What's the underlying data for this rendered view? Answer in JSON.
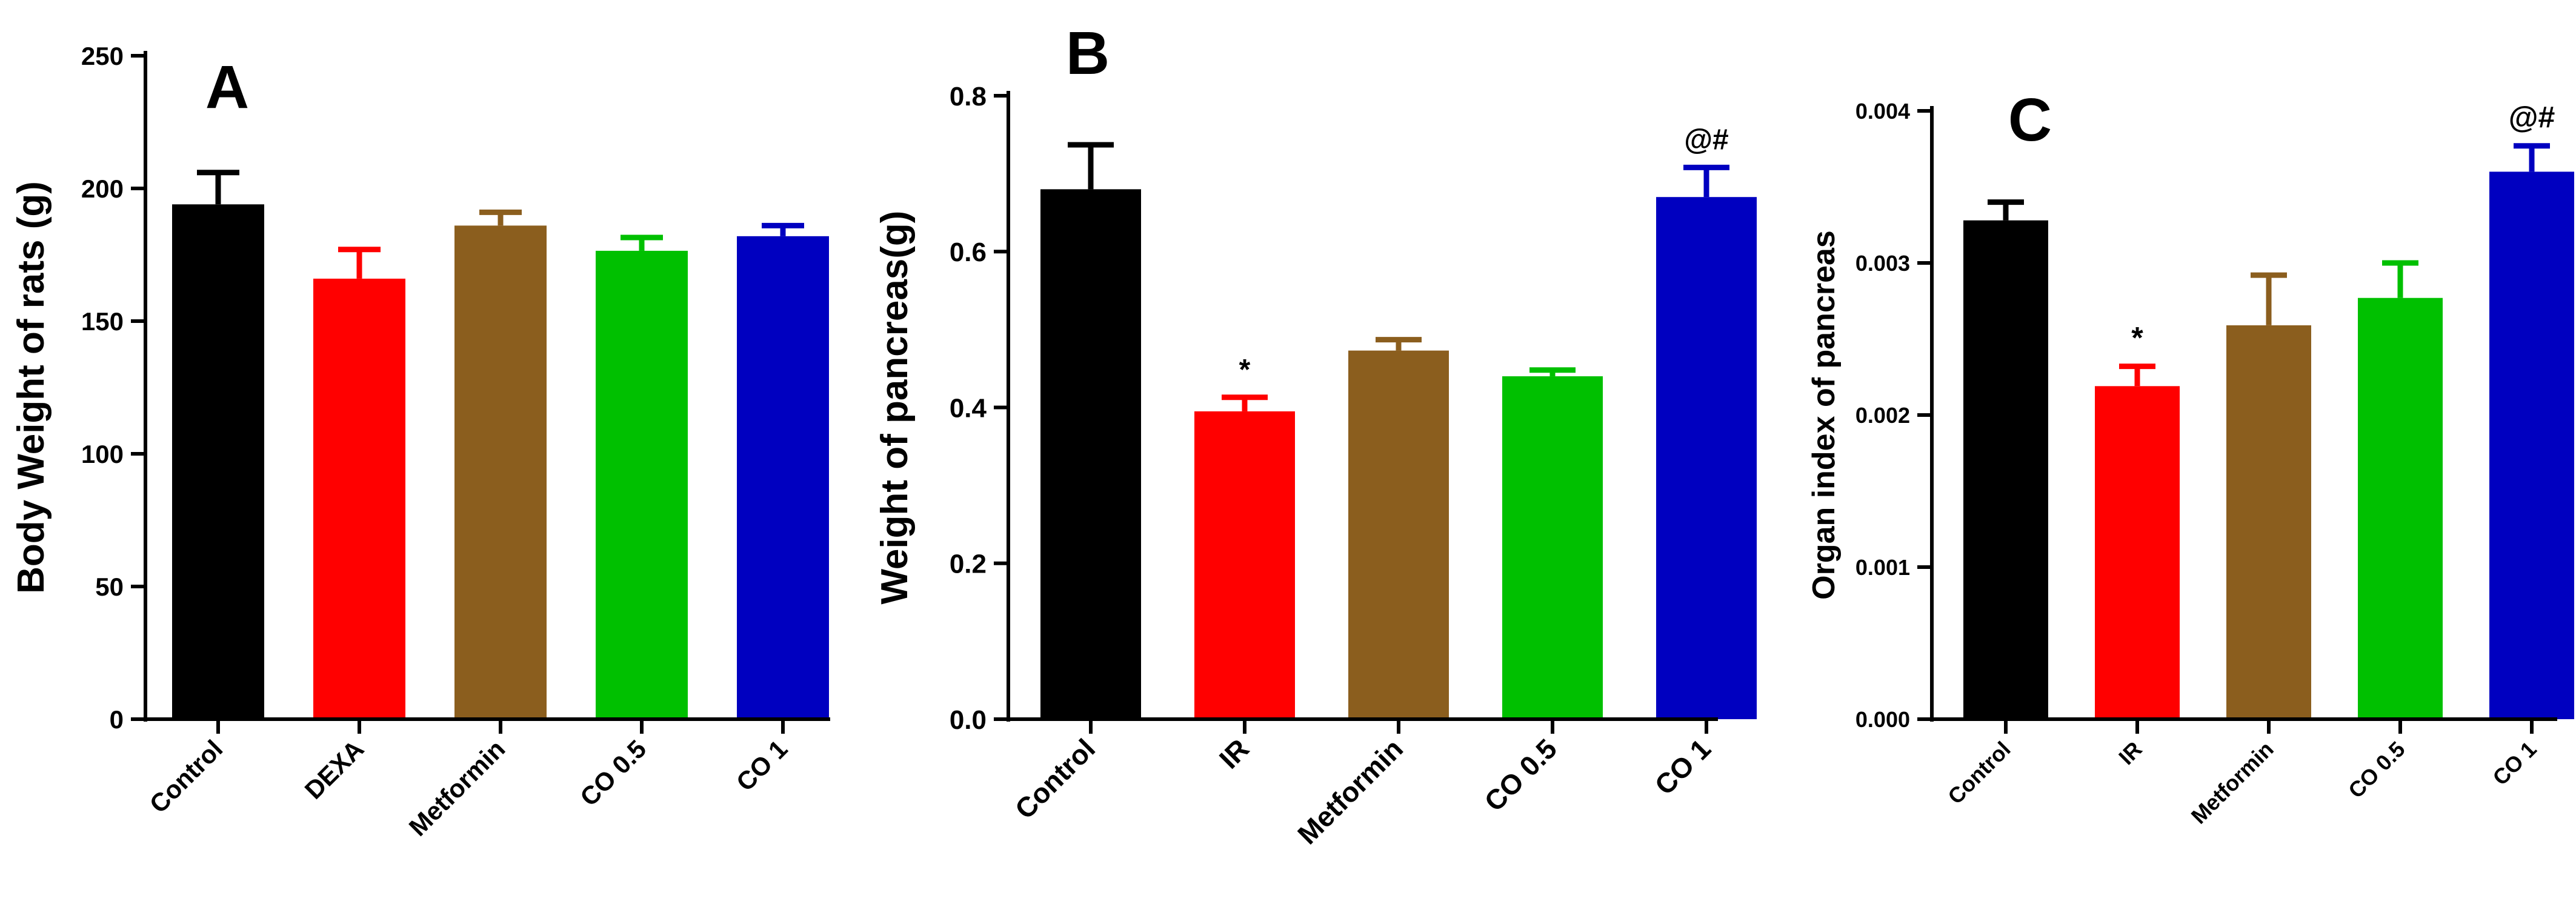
{
  "chart_data": [
    {
      "type": "bar",
      "panel_label": "A",
      "title": "",
      "xlabel": "",
      "ylabel": "Body Weight of rats (g)",
      "ylim": [
        0,
        250
      ],
      "yticks": [
        0,
        50,
        100,
        150,
        200,
        250
      ],
      "ytick_labels": [
        "0",
        "50",
        "100",
        "150",
        "200",
        "250"
      ],
      "categories": [
        "Control",
        "DEXA",
        "Metformin",
        "CO 0.5",
        "CO 1"
      ],
      "values": [
        194,
        166,
        186,
        176.5,
        182
      ],
      "errors": [
        12,
        11,
        5,
        5,
        4
      ],
      "annotations": [
        "",
        "",
        "",
        "",
        ""
      ],
      "colors": [
        "#000000",
        "#ff0000",
        "#8b5e1e",
        "#00c000",
        "#0000c0"
      ],
      "grid": false
    },
    {
      "type": "bar",
      "panel_label": "B",
      "title": "",
      "xlabel": "",
      "ylabel": "Weight of pancreas(g)",
      "ylim": [
        0,
        0.8
      ],
      "yticks": [
        0,
        0.2,
        0.4,
        0.6,
        0.8
      ],
      "ytick_labels": [
        "0.0",
        "0.2",
        "0.4",
        "0.6",
        "0.8"
      ],
      "categories": [
        "Control",
        "IR",
        "Metformin",
        "CO 0.5",
        "CO 1"
      ],
      "values": [
        0.68,
        0.395,
        0.473,
        0.44,
        0.67
      ],
      "errors": [
        0.057,
        0.018,
        0.014,
        0.008,
        0.038
      ],
      "annotations": [
        "",
        "*",
        "",
        "",
        "@#"
      ],
      "colors": [
        "#000000",
        "#ff0000",
        "#8b5e1e",
        "#00c000",
        "#0000c0"
      ],
      "grid": false
    },
    {
      "type": "bar",
      "panel_label": "C",
      "title": "",
      "xlabel": "",
      "ylabel": "Organ index of pancreas",
      "ylim": [
        0,
        0.004
      ],
      "yticks": [
        0,
        0.001,
        0.002,
        0.003,
        0.004
      ],
      "ytick_labels": [
        "0.000",
        "0.001",
        "0.002",
        "0.003",
        "0.004"
      ],
      "categories": [
        "Control",
        "IR",
        "Metformin",
        "CO 0.5",
        "CO 1"
      ],
      "values": [
        0.00328,
        0.00219,
        0.00259,
        0.00277,
        0.0036
      ],
      "errors": [
        0.00012,
        0.00013,
        0.00033,
        0.00023,
        0.00017
      ],
      "annotations": [
        "",
        "*",
        "",
        "",
        "@#"
      ],
      "colors": [
        "#ff0000",
        "#ff0000",
        "#8b5e1e",
        "#00c000",
        "#0000c0"
      ],
      "grid": false
    }
  ]
}
